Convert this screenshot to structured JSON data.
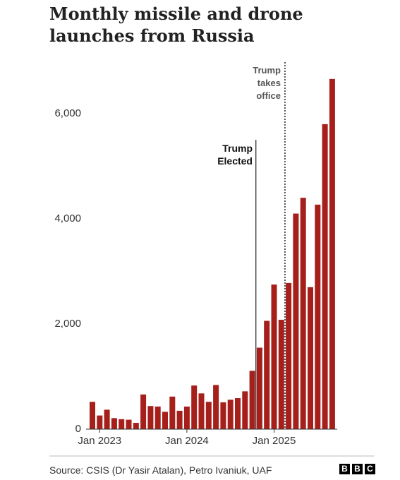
{
  "chart_data": {
    "type": "bar",
    "title": "Monthly missile and drone launches from Russia",
    "categories": [
      null,
      "Jan 2023",
      null,
      null,
      null,
      null,
      null,
      null,
      null,
      null,
      null,
      null,
      null,
      "Jan 2024",
      null,
      null,
      null,
      null,
      null,
      null,
      null,
      null,
      null,
      null,
      null,
      "Jan 2025",
      null,
      null,
      null,
      null,
      null,
      null,
      null,
      null
    ],
    "values": [
      520,
      260,
      370,
      210,
      190,
      180,
      120,
      660,
      440,
      430,
      330,
      620,
      350,
      430,
      830,
      680,
      520,
      840,
      510,
      560,
      590,
      720,
      1110,
      1550,
      2060,
      2750,
      2080,
      2780,
      4100,
      4400,
      2700,
      4270,
      5800,
      6660
    ],
    "color": "#a51f1b",
    "ylim": [
      0,
      7000
    ],
    "yticks": [
      0,
      {
        "value": 2000,
        "label": "2,000"
      },
      {
        "value": 4000,
        "label": "4,000"
      },
      {
        "value": 6000,
        "label": "6,000"
      }
    ],
    "grid": false,
    "annotations": [
      {
        "text": "Trump Elected"
      },
      {
        "text": "Trump takes office"
      }
    ],
    "source": "Source: CSIS (Dr Yasir Atalan), Petro Ivaniuk, UAF",
    "logo": [
      "B",
      "B",
      "C"
    ]
  }
}
